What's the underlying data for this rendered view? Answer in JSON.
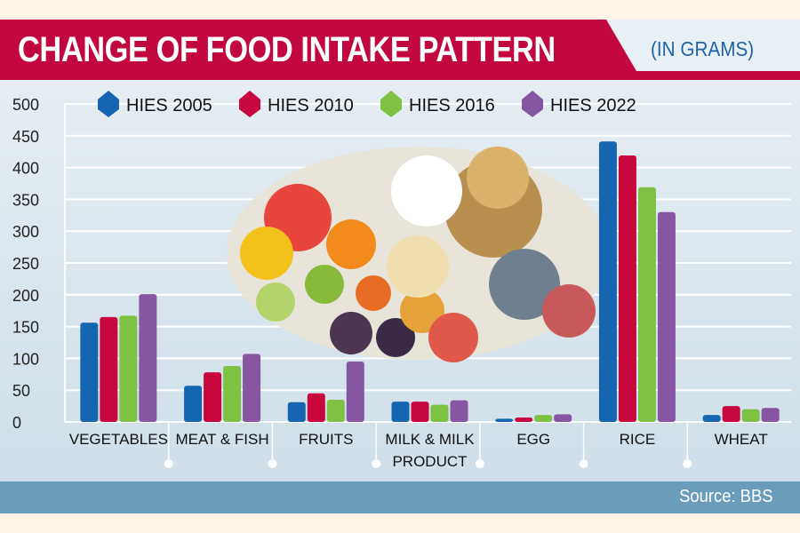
{
  "chart_data": {
    "type": "bar",
    "title": "CHANGE OF FOOD INTAKE PATTERN",
    "subtitle": "(IN GRAMS)",
    "source": "Source: BBS",
    "categories": [
      "VEGETABLES",
      "MEAT & FISH",
      "FRUITS",
      "MILK & MILK PRODUCT",
      "EGG",
      "RICE",
      "WHEAT"
    ],
    "category_lines": [
      [
        "VEGETABLES"
      ],
      [
        "MEAT & FISH"
      ],
      [
        "FRUITS"
      ],
      [
        "MILK & MILK",
        "PRODUCT"
      ],
      [
        "EGG"
      ],
      [
        "RICE"
      ],
      [
        "WHEAT"
      ]
    ],
    "series": [
      {
        "name": "HIES 2005",
        "color": "#1565b0",
        "values": [
          156,
          57,
          31,
          32,
          5,
          441,
          11
        ]
      },
      {
        "name": "HIES 2010",
        "color": "#c8073f",
        "values": [
          165,
          78,
          45,
          32,
          7,
          419,
          25
        ]
      },
      {
        "name": "HIES 2016",
        "color": "#7dc242",
        "values": [
          167,
          88,
          35,
          27,
          11,
          369,
          20
        ]
      },
      {
        "name": "HIES 2022",
        "color": "#8656a3",
        "values": [
          201,
          107,
          95,
          34,
          12,
          330,
          22
        ]
      }
    ],
    "ylim": [
      0,
      500
    ],
    "yticks": [
      0,
      50,
      100,
      150,
      200,
      250,
      300,
      350,
      400,
      450,
      500
    ],
    "grid": true,
    "legend": "top",
    "banner_color": "#c2073f"
  }
}
